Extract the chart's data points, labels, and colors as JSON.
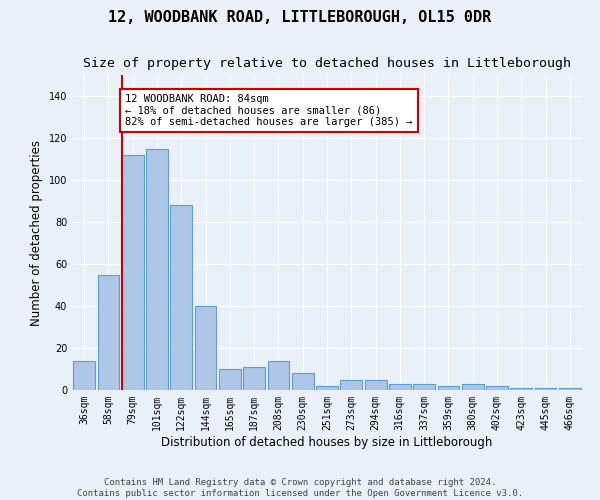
{
  "title": "12, WOODBANK ROAD, LITTLEBOROUGH, OL15 0DR",
  "subtitle": "Size of property relative to detached houses in Littleborough",
  "xlabel": "Distribution of detached houses by size in Littleborough",
  "ylabel": "Number of detached properties",
  "categories": [
    "36sqm",
    "58sqm",
    "79sqm",
    "101sqm",
    "122sqm",
    "144sqm",
    "165sqm",
    "187sqm",
    "208sqm",
    "230sqm",
    "251sqm",
    "273sqm",
    "294sqm",
    "316sqm",
    "337sqm",
    "359sqm",
    "380sqm",
    "402sqm",
    "423sqm",
    "445sqm",
    "466sqm"
  ],
  "values": [
    14,
    55,
    112,
    115,
    88,
    40,
    10,
    11,
    14,
    8,
    2,
    5,
    5,
    3,
    3,
    2,
    3,
    2,
    1,
    1,
    1
  ],
  "bar_color": "#aec6e8",
  "bar_edgecolor": "#5a9fd4",
  "highlight_index": 2,
  "highlight_line_color": "#cc0000",
  "ylim": [
    0,
    150
  ],
  "yticks": [
    0,
    20,
    40,
    60,
    80,
    100,
    120,
    140
  ],
  "background_color": "#eaf0f8",
  "annotation_text": "12 WOODBANK ROAD: 84sqm\n← 18% of detached houses are smaller (86)\n82% of semi-detached houses are larger (385) →",
  "annotation_box_color": "#ffffff",
  "annotation_box_edgecolor": "#cc0000",
  "footer_text": "Contains HM Land Registry data © Crown copyright and database right 2024.\nContains public sector information licensed under the Open Government Licence v3.0.",
  "title_fontsize": 11,
  "subtitle_fontsize": 9.5,
  "xlabel_fontsize": 8.5,
  "ylabel_fontsize": 8.5,
  "tick_fontsize": 7,
  "annotation_fontsize": 7.5,
  "footer_fontsize": 6.5
}
